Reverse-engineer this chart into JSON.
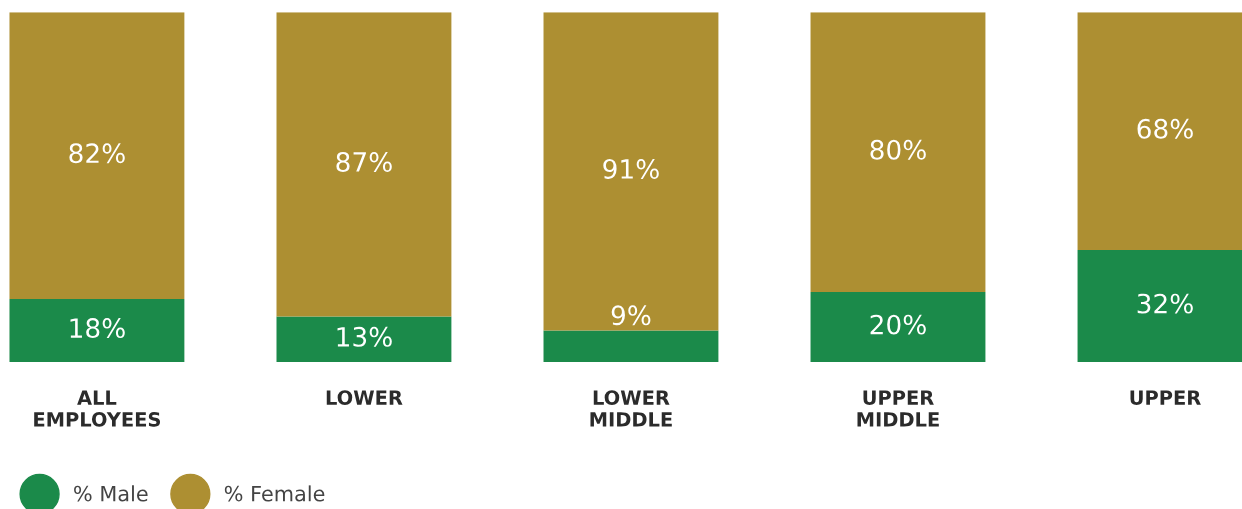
{
  "chart_data": {
    "type": "bar",
    "stacked": true,
    "legend": "bottom left",
    "marker": "circle",
    "categories": [
      "ALL\nEMPLOYEES",
      "LOWER",
      "LOWER\nMIDDLE",
      "UPPER\nMIDDLE",
      "UPPER"
    ],
    "series": [
      {
        "name": "% Male",
        "color": "#1b8a4a",
        "values": [
          18,
          13,
          9,
          20,
          32
        ],
        "value_labels": [
          "18%",
          "13%",
          "9%",
          "20%",
          "32%"
        ]
      },
      {
        "name": "% Female",
        "color": "#ad8f32",
        "values": [
          82,
          87,
          91,
          80,
          68
        ],
        "value_labels": [
          "82%",
          "87%",
          "91%",
          "80%",
          "68%"
        ]
      }
    ]
  }
}
